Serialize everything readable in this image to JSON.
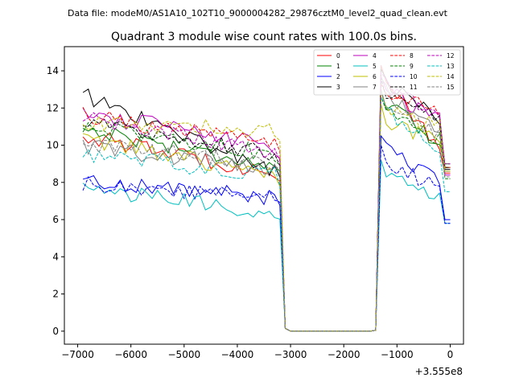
{
  "chart_data": {
    "type": "line",
    "suptitle": "Data file: modeM0/AS1A10_102T10_9000004282_29876cztM0_level2_quad_clean.evt",
    "title": "Quadrant 3 module wise count rates with 100.0s bins.",
    "xlabel": "",
    "ylabel": "",
    "x_offset_label": "+3.555e8",
    "xlim": [
      -7250,
      250
    ],
    "ylim": [
      -0.7,
      15.3
    ],
    "x_ticks": [
      -7000,
      -6000,
      -5000,
      -4000,
      -3000,
      -2000,
      -1000,
      0
    ],
    "x_tick_labels": [
      "−7000",
      "−6000",
      "−5000",
      "−4000",
      "−3000",
      "−2000",
      "−1000",
      "0"
    ],
    "y_ticks": [
      0,
      2,
      4,
      6,
      8,
      10,
      12,
      14
    ],
    "y_tick_labels": [
      "0",
      "2",
      "4",
      "6",
      "8",
      "10",
      "12",
      "14"
    ],
    "legend_position": "top-right",
    "x_start": -6900,
    "x_step": 100,
    "series": [
      {
        "name": "0",
        "color": "#ff0000",
        "dash": "solid",
        "pre_start": 10.5,
        "pre_end": 8.5,
        "post_peak": 14.3,
        "post_end": 9.2,
        "end_value": 8.5
      },
      {
        "name": "1",
        "color": "#008000",
        "dash": "solid",
        "pre_start": 10.9,
        "pre_end": 8.9,
        "post_peak": 13.0,
        "post_end": 9.8,
        "end_value": 9.0
      },
      {
        "name": "2",
        "color": "#0000ff",
        "dash": "solid",
        "pre_start": 8.1,
        "pre_end": 7.2,
        "post_peak": 10.5,
        "post_end": 7.9,
        "end_value": 6.0
      },
      {
        "name": "3",
        "color": "#000000",
        "dash": "solid",
        "pre_start": 12.7,
        "pre_end": 8.6,
        "post_peak": 14.1,
        "post_end": 11.3,
        "end_value": 8.7
      },
      {
        "name": "4",
        "color": "#bf00bf",
        "dash": "solid",
        "pre_start": 11.8,
        "pre_end": 9.9,
        "post_peak": 13.7,
        "post_end": 11.2,
        "end_value": 8.4
      },
      {
        "name": "5",
        "color": "#00bfbf",
        "dash": "solid",
        "pre_start": 7.7,
        "pre_end": 6.3,
        "post_peak": 9.2,
        "post_end": 7.1,
        "end_value": 5.8
      },
      {
        "name": "6",
        "color": "#bfbf00",
        "dash": "solid",
        "pre_start": 10.3,
        "pre_end": 8.4,
        "post_peak": 12.2,
        "post_end": 10.0,
        "end_value": 8.8
      },
      {
        "name": "7",
        "color": "#808080",
        "dash": "solid",
        "pre_start": 9.9,
        "pre_end": 8.8,
        "post_peak": 13.6,
        "post_end": 10.6,
        "end_value": 8.6
      },
      {
        "name": "8",
        "color": "#ff0000",
        "dash": "dashed",
        "pre_start": 11.6,
        "pre_end": 10.0,
        "post_peak": 13.3,
        "post_end": 11.8,
        "end_value": 8.8
      },
      {
        "name": "9",
        "color": "#008000",
        "dash": "dashed",
        "pre_start": 11.1,
        "pre_end": 9.5,
        "post_peak": 12.6,
        "post_end": 10.1,
        "end_value": 8.2
      },
      {
        "name": "10",
        "color": "#0000ff",
        "dash": "dashed",
        "pre_start": 7.9,
        "pre_end": 7.2,
        "post_peak": 10.0,
        "post_end": 7.4,
        "end_value": 5.8
      },
      {
        "name": "11",
        "color": "#000000",
        "dash": "dashed",
        "pre_start": 11.3,
        "pre_end": 9.5,
        "post_peak": 13.6,
        "post_end": 11.4,
        "end_value": 8.8
      },
      {
        "name": "12",
        "color": "#bf00bf",
        "dash": "dashed",
        "pre_start": 11.5,
        "pre_end": 9.6,
        "post_peak": 13.9,
        "post_end": 11.5,
        "end_value": 9.0
      },
      {
        "name": "13",
        "color": "#00bfbf",
        "dash": "dashed",
        "pre_start": 9.5,
        "pre_end": 8.4,
        "post_peak": 12.6,
        "post_end": 9.7,
        "end_value": 7.5
      },
      {
        "name": "14",
        "color": "#bfbf00",
        "dash": "dashed",
        "pre_start": 11.2,
        "pre_end": 10.8,
        "post_peak": 12.8,
        "post_end": 10.8,
        "end_value": 8.6
      },
      {
        "name": "15",
        "color": "#808080",
        "dash": "dashed",
        "pre_start": 10.1,
        "pre_end": 9.0,
        "post_peak": 12.9,
        "post_end": 10.5,
        "end_value": 8.3
      }
    ]
  }
}
